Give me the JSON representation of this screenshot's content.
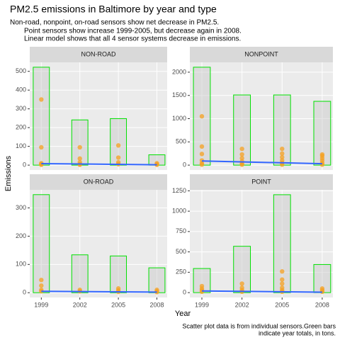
{
  "title": "PM2.5 emissions in Baltimore by year and type",
  "subtitle": [
    "Non-road, nonpoint, on-road sensors show net decrease in PM2.5.",
    "Point sensors show increase 1999-2005, but decrease again in 2008.",
    "Linear model shows that all 4 sensor systems decrease in emissions."
  ],
  "x_label": "Year",
  "y_label": "Emissions",
  "caption": [
    "Scatter plot data is from individual sensors.Green bars",
    "indicate year totals, in tons."
  ],
  "chart_data": [
    {
      "type": "bar",
      "title": "NON-ROAD",
      "x": [
        1999,
        2002,
        2005,
        2008
      ],
      "values": [
        522,
        241,
        248,
        55
      ],
      "color": "#00e000",
      "xlim": [
        1998.1,
        2008.8
      ],
      "xticks": [
        1999,
        2002,
        2005,
        2008
      ],
      "ylim": [
        -26,
        548
      ],
      "yticks": [
        0,
        100,
        200,
        300,
        400,
        500
      ],
      "grid": true,
      "scatter": {
        "type": "scatter",
        "color": "#f5a020",
        "x": [
          1999,
          1999,
          1999,
          1999,
          1999,
          2002,
          2002,
          2002,
          2002,
          2002,
          2005,
          2005,
          2005,
          2005,
          2008,
          2008,
          2008
        ],
        "y": [
          350,
          95,
          10,
          5,
          2,
          95,
          35,
          15,
          5,
          2,
          105,
          40,
          15,
          5,
          10,
          5,
          2
        ]
      },
      "trend": {
        "type": "line",
        "color": "#3366ff",
        "x": [
          1999,
          2008
        ],
        "y": [
          8,
          2
        ]
      }
    },
    {
      "type": "bar",
      "title": "NONPOINT",
      "x": [
        1999,
        2002,
        2005,
        2008
      ],
      "values": [
        2107,
        1510,
        1510,
        1373
      ],
      "color": "#00e000",
      "xlim": [
        1998.1,
        2008.8
      ],
      "xticks": [
        1999,
        2002,
        2005,
        2008
      ],
      "ylim": [
        -105,
        2212
      ],
      "yticks": [
        0,
        500,
        1000,
        1500,
        2000
      ],
      "grid": true,
      "scatter": {
        "type": "scatter",
        "color": "#f5a020",
        "x": [
          1999,
          1999,
          1999,
          1999,
          1999,
          1999,
          2002,
          2002,
          2002,
          2002,
          2002,
          2002,
          2005,
          2005,
          2005,
          2005,
          2005,
          2005,
          2008,
          2008,
          2008,
          2008,
          2008,
          2008
        ],
        "y": [
          1050,
          400,
          240,
          100,
          40,
          10,
          350,
          230,
          150,
          80,
          30,
          10,
          350,
          250,
          170,
          100,
          50,
          10,
          230,
          200,
          150,
          100,
          50,
          10
        ]
      },
      "trend": {
        "type": "line",
        "color": "#3366ff",
        "x": [
          1999,
          2008
        ],
        "y": [
          90,
          30
        ]
      }
    },
    {
      "type": "bar",
      "title": "ON-ROAD",
      "x": [
        1999,
        2002,
        2005,
        2008
      ],
      "values": [
        347,
        134,
        130,
        88
      ],
      "color": "#00e000",
      "xlim": [
        1998.1,
        2008.8
      ],
      "xticks": [
        1999,
        2002,
        2005,
        2008
      ],
      "ylim": [
        -17,
        364
      ],
      "yticks": [
        0,
        100,
        200,
        300
      ],
      "grid": true,
      "scatter": {
        "type": "scatter",
        "color": "#f5a020",
        "x": [
          1999,
          1999,
          1999,
          1999,
          2002,
          2002,
          2005,
          2005,
          2005,
          2008,
          2008,
          2008
        ],
        "y": [
          45,
          25,
          10,
          5,
          10,
          5,
          15,
          8,
          3,
          10,
          5,
          2
        ]
      },
      "trend": {
        "type": "line",
        "color": "#3366ff",
        "x": [
          1999,
          2008
        ],
        "y": [
          5,
          2
        ]
      }
    },
    {
      "type": "bar",
      "title": "POINT",
      "x": [
        1999,
        2002,
        2005,
        2008
      ],
      "values": [
        296,
        569,
        1202,
        345
      ],
      "color": "#00e000",
      "xlim": [
        1998.1,
        2008.8
      ],
      "xticks": [
        1999,
        2002,
        2005,
        2008
      ],
      "ylim": [
        -60,
        1262
      ],
      "yticks": [
        0,
        250,
        500,
        750,
        1000,
        1250
      ],
      "grid": true,
      "scatter": {
        "type": "scatter",
        "color": "#f5a020",
        "x": [
          1999,
          1999,
          1999,
          1999,
          2002,
          2002,
          2002,
          2002,
          2005,
          2005,
          2005,
          2005,
          2005,
          2005,
          2008,
          2008,
          2008
        ],
        "y": [
          80,
          50,
          30,
          10,
          110,
          60,
          30,
          10,
          260,
          160,
          110,
          60,
          30,
          10,
          50,
          30,
          10
        ]
      },
      "trend": {
        "type": "line",
        "color": "#3366ff",
        "x": [
          1999,
          2008
        ],
        "y": [
          20,
          5
        ]
      }
    }
  ]
}
